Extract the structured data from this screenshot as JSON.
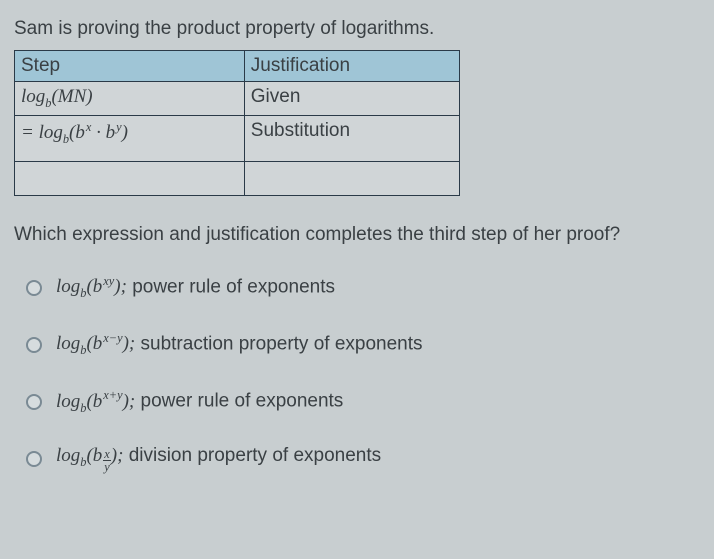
{
  "prompt": "Sam is proving the product property of logarithms.",
  "table": {
    "header_bg": "#9fc5d6",
    "border_color": "#2a3a48",
    "columns": [
      "Step",
      "Justification"
    ],
    "rows": [
      {
        "step_html": "log<sub>b</sub>(<span class='math'>MN</span>)",
        "just": "Given"
      },
      {
        "step_html": "= log<sub>b</sub>(<span class='math'>b<sup>x</sup> · b<sup>y</sup></span>)",
        "just": "Substitution"
      },
      {
        "step_html": "",
        "just": ""
      }
    ]
  },
  "question": "Which expression and justification completes the third step of her proof?",
  "options": [
    {
      "expr_html": "log<sub>b</sub>(<span class='math'>b<sup>xy</sup></span>);",
      "text": "power rule of exponents"
    },
    {
      "expr_html": "log<sub>b</sub>(<span class='math'>b<sup>x−y</sup></span>);",
      "text": "subtraction property of exponents"
    },
    {
      "expr_html": "log<sub>b</sub>(<span class='math'>b<sup>x+y</sup></span>);",
      "text": "power rule of exponents"
    },
    {
      "expr_html": "log<sub>b</sub>(<span class='math'>b</span><span class='frac'><span class='num'>x</span><span class='den'>y</span></span>);",
      "text": "division property of exponents"
    }
  ],
  "colors": {
    "page_bg": "#c8ced0",
    "text": "#3a4044",
    "radio_border": "#7a8a94"
  }
}
